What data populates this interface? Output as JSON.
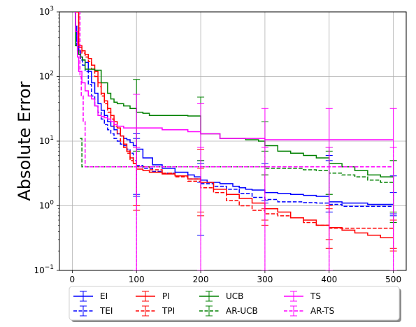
{
  "chart_data": {
    "type": "line",
    "title": "",
    "xlabel": "",
    "ylabel": "Absolute Error",
    "xlim": [
      -20,
      520
    ],
    "ylim": [
      0.1,
      1000
    ],
    "yscale": "log",
    "grid": true,
    "legend_position": "bottom",
    "x_ticks": [
      0,
      100,
      200,
      300,
      400,
      500
    ],
    "x_tick_labels": [
      "0",
      "100",
      "200",
      "300",
      "400",
      "500"
    ],
    "y_ticks": [
      0.1,
      1,
      10,
      100,
      1000
    ],
    "y_tick_labels": [
      {
        "base": "10",
        "exp": "−1"
      },
      {
        "base": "10",
        "exp": "0"
      },
      {
        "base": "10",
        "exp": "1"
      },
      {
        "base": "10",
        "exp": "2"
      },
      {
        "base": "10",
        "exp": "3"
      }
    ],
    "series": [
      {
        "name": "EI",
        "color": "#0000ff",
        "dash": "solid",
        "x": [
          3,
          5,
          7,
          10,
          13,
          16,
          20,
          25,
          30,
          35,
          40,
          45,
          50,
          55,
          60,
          65,
          70,
          75,
          80,
          85,
          90,
          95,
          100,
          110,
          125,
          140,
          160,
          180,
          190,
          200,
          210,
          230,
          250,
          260,
          270,
          280,
          300,
          320,
          340,
          360,
          380,
          400,
          420,
          440,
          460,
          480,
          500
        ],
        "y": [
          1000,
          600,
          350,
          250,
          200,
          180,
          165,
          120,
          80,
          55,
          38,
          30,
          25,
          20,
          17,
          15,
          13,
          12,
          11,
          10.5,
          9.5,
          8.5,
          7.5,
          5.5,
          4.3,
          3.8,
          3.3,
          3.0,
          2.8,
          2.5,
          2.3,
          2.2,
          2.0,
          1.9,
          1.8,
          1.75,
          1.6,
          1.55,
          1.5,
          1.45,
          1.4,
          1.15,
          1.1,
          1.1,
          1.05,
          1.05,
          1.05
        ],
        "errors": [
          {
            "x": 100,
            "low": 1.5,
            "high": 13
          },
          {
            "x": 200,
            "low": 2.3,
            "high": 5
          },
          {
            "x": 300,
            "low": 1.2,
            "high": 3
          },
          {
            "x": 400,
            "low": 0.8,
            "high": 5
          },
          {
            "x": 500,
            "low": 0.7,
            "high": 2.9
          }
        ]
      },
      {
        "name": "TEI",
        "color": "#0000ff",
        "dash": "dashed",
        "x": [
          3,
          5,
          7,
          10,
          13,
          16,
          20,
          25,
          30,
          35,
          40,
          45,
          50,
          55,
          60,
          65,
          70,
          75,
          80,
          85,
          90,
          95,
          100,
          110,
          125,
          140,
          160,
          180,
          200,
          220,
          240,
          260,
          280,
          300,
          320,
          340,
          360,
          380,
          400,
          420,
          440,
          460,
          480,
          500
        ],
        "y": [
          1000,
          500,
          300,
          220,
          180,
          150,
          120,
          75,
          50,
          35,
          28,
          22,
          18,
          15,
          13,
          11,
          10,
          9,
          8.5,
          7.5,
          6.5,
          5,
          4.2,
          3.8,
          3.4,
          3.2,
          2.9,
          2.6,
          2.2,
          2.0,
          1.8,
          1.55,
          1.35,
          1.25,
          1.15,
          1.15,
          1.12,
          1.1,
          1.05,
          0.98,
          0.98,
          0.98,
          0.98,
          0.98
        ],
        "errors": [
          {
            "x": 100,
            "low": 1.4,
            "high": 11
          },
          {
            "x": 200,
            "low": 0.35,
            "high": 4.5
          },
          {
            "x": 300,
            "low": 1.1,
            "high": 4.5
          },
          {
            "x": 400,
            "low": 0.8,
            "high": 6
          },
          {
            "x": 500,
            "low": 0.75,
            "high": 1.6
          }
        ]
      },
      {
        "name": "PI",
        "color": "#ff0000",
        "dash": "solid",
        "x": [
          5,
          10,
          15,
          20,
          25,
          30,
          35,
          40,
          45,
          50,
          55,
          60,
          65,
          70,
          75,
          80,
          85,
          90,
          95,
          100,
          110,
          120,
          140,
          160,
          180,
          200,
          220,
          240,
          260,
          280,
          300,
          320,
          340,
          360,
          380,
          400,
          420,
          440,
          460,
          480,
          500
        ],
        "y": [
          1000,
          300,
          250,
          220,
          190,
          150,
          120,
          80,
          55,
          42,
          32,
          25,
          20,
          16,
          12,
          9,
          7,
          5.5,
          4.5,
          3.7,
          3.5,
          3.3,
          3.1,
          2.9,
          2.6,
          2.3,
          1.8,
          1.5,
          1.3,
          1.1,
          0.9,
          0.8,
          0.65,
          0.6,
          0.5,
          0.46,
          0.42,
          0.38,
          0.35,
          0.32,
          0.32
        ],
        "errors": [
          {
            "x": 100,
            "low": 1,
            "high": 8
          },
          {
            "x": 200,
            "low": 0.7,
            "high": 7.5
          },
          {
            "x": 300,
            "low": 0.6,
            "high": 3
          },
          {
            "x": 400,
            "low": 0.3,
            "high": 1
          },
          {
            "x": 500,
            "low": 0.2,
            "high": 0.6
          }
        ]
      },
      {
        "name": "TPI",
        "color": "#ff0000",
        "dash": "dashed",
        "x": [
          5,
          10,
          15,
          20,
          25,
          30,
          35,
          40,
          45,
          50,
          55,
          60,
          65,
          70,
          75,
          80,
          85,
          90,
          95,
          100,
          120,
          140,
          160,
          180,
          200,
          220,
          240,
          260,
          280,
          300,
          320,
          340,
          360,
          380,
          400,
          420,
          440,
          460,
          480,
          500
        ],
        "y": [
          1000,
          280,
          230,
          200,
          170,
          130,
          100,
          70,
          50,
          38,
          28,
          22,
          17,
          13,
          10,
          8,
          6.5,
          5,
          4.5,
          4.0,
          3.6,
          3.2,
          2.8,
          2.4,
          1.9,
          1.6,
          1.2,
          1.0,
          0.85,
          0.75,
          0.7,
          0.65,
          0.55,
          0.5,
          0.45,
          0.45,
          0.45,
          0.45,
          0.45,
          0.45
        ],
        "errors": [
          {
            "x": 100,
            "low": 0.85,
            "high": 8
          },
          {
            "x": 200,
            "low": 0.8,
            "high": 3.8
          },
          {
            "x": 300,
            "low": 0.5,
            "high": 0.9
          },
          {
            "x": 400,
            "low": 0.22,
            "high": 0.9
          },
          {
            "x": 500,
            "low": 0.22,
            "high": 0.8
          }
        ]
      },
      {
        "name": "UCB",
        "color": "#008000",
        "dash": "solid",
        "x": [
          3,
          5,
          8,
          10,
          13,
          16,
          20,
          25,
          30,
          35,
          40,
          45,
          50,
          55,
          60,
          65,
          70,
          80,
          90,
          100,
          110,
          120,
          150,
          180,
          200,
          220,
          230,
          250,
          270,
          290,
          300,
          320,
          340,
          360,
          380,
          400,
          420,
          440,
          460,
          480,
          500
        ],
        "y": [
          1000,
          300,
          250,
          220,
          200,
          180,
          130,
          130,
          130,
          125,
          125,
          80,
          80,
          55,
          45,
          40,
          38,
          35,
          32,
          28,
          27,
          25,
          25,
          24.5,
          13,
          13,
          11,
          11,
          10.5,
          10,
          8.5,
          7,
          6.5,
          6,
          5.5,
          4.5,
          4,
          3.5,
          3,
          2.8,
          2.7
        ],
        "errors": [
          {
            "x": 100,
            "low": 7,
            "high": 90
          },
          {
            "x": 200,
            "low": 5,
            "high": 48
          },
          {
            "x": 300,
            "low": 4,
            "high": 20
          },
          {
            "x": 400,
            "low": 1.5,
            "high": 8
          },
          {
            "x": 500,
            "low": 0.55,
            "high": 5
          }
        ]
      },
      {
        "name": "AR-UCB",
        "color": "#008000",
        "dash": "dashed",
        "x": [
          12,
          15,
          20,
          40,
          60,
          80,
          100,
          120,
          140,
          160,
          180,
          200,
          220,
          240,
          260,
          280,
          300,
          320,
          340,
          360,
          380,
          400,
          420,
          440,
          460,
          480,
          500
        ],
        "y": [
          11,
          4,
          4,
          4,
          4,
          4,
          4,
          4,
          4,
          4,
          4,
          4,
          4,
          4,
          4,
          4,
          3.8,
          3.8,
          3.8,
          3.6,
          3.5,
          3.2,
          3.0,
          2.8,
          2.5,
          2.3,
          2.2
        ],
        "errors": [
          {
            "x": 300,
            "low": 3,
            "high": 7
          },
          {
            "x": 400,
            "low": 1.5,
            "high": 7
          },
          {
            "x": 500,
            "low": 0.8,
            "high": 5
          }
        ]
      },
      {
        "name": "TS",
        "color": "#ff00ff",
        "dash": "solid",
        "x": [
          3,
          5,
          8,
          10,
          15,
          20,
          25,
          30,
          35,
          40,
          45,
          50,
          55,
          60,
          65,
          70,
          80,
          100,
          120,
          140,
          160,
          180,
          200,
          220,
          230,
          250,
          300,
          350,
          400,
          450,
          500
        ],
        "y": [
          1000,
          500,
          200,
          120,
          80,
          60,
          50,
          45,
          35,
          25,
          24,
          23,
          22,
          20,
          18,
          17,
          16,
          16,
          16,
          15,
          15,
          14,
          13,
          13,
          11,
          11,
          10.5,
          10.5,
          10.5,
          10.5,
          10.5
        ],
        "errors": [
          {
            "x": 100,
            "low": 0.1,
            "high": 53
          },
          {
            "x": 200,
            "low": 0.1,
            "high": 38
          },
          {
            "x": 300,
            "low": 0.1,
            "high": 32
          },
          {
            "x": 400,
            "low": 0.1,
            "high": 32
          },
          {
            "x": 500,
            "low": 0.1,
            "high": 32
          }
        ]
      },
      {
        "name": "AR-TS",
        "color": "#ff00ff",
        "dash": "dashed",
        "x": [
          10,
          12,
          14,
          17,
          20,
          40,
          100,
          200,
          300,
          400,
          500
        ],
        "y": [
          1000,
          100,
          50,
          20,
          4,
          4,
          4,
          4,
          4,
          4,
          4
        ],
        "errors": [
          {
            "x": 100,
            "low": 0.1,
            "high": 8
          },
          {
            "x": 200,
            "low": 0.1,
            "high": 8
          },
          {
            "x": 300,
            "low": 0.1,
            "high": 8
          },
          {
            "x": 400,
            "low": 0.1,
            "high": 8
          },
          {
            "x": 500,
            "low": 0.1,
            "high": 8
          }
        ]
      }
    ]
  }
}
